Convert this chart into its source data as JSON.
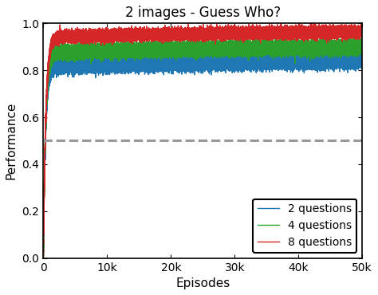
{
  "title": "2 images - Guess Who?",
  "xlabel": "Episodes",
  "ylabel": "Performance",
  "xlim": [
    0,
    50000
  ],
  "ylim": [
    0.0,
    1.0
  ],
  "xtick_labels": [
    "0",
    "10k",
    "20k",
    "30k",
    "40k",
    "50k"
  ],
  "xtick_vals": [
    0,
    10000,
    20000,
    30000,
    40000,
    50000
  ],
  "ytick_vals": [
    0.0,
    0.2,
    0.4,
    0.6,
    0.8,
    1.0
  ],
  "baseline_y": 0.5,
  "baseline_color": "#999999",
  "baseline_lw": 2.2,
  "curves": [
    {
      "label": "2 questions",
      "color": "#1f77b4",
      "plateau": 0.815,
      "noise": 0.022,
      "rise_rate": 0.003,
      "start": 0.0
    },
    {
      "label": "4 questions",
      "color": "#2ca02c",
      "plateau": 0.875,
      "noise": 0.022,
      "rise_rate": 0.0028,
      "start": 0.0
    },
    {
      "label": "8 questions",
      "color": "#d62728",
      "plateau": 0.94,
      "noise": 0.018,
      "rise_rate": 0.0026,
      "start": 0.0
    }
  ],
  "n_points": 50000,
  "legend_loc": "lower right",
  "legend_fontsize": 10,
  "title_fontsize": 12,
  "label_fontsize": 11,
  "tick_fontsize": 10,
  "line_width": 1.0
}
